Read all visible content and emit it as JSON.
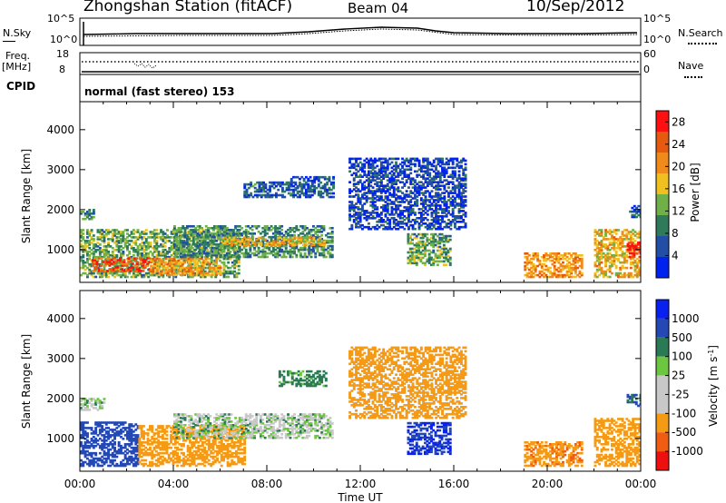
{
  "header": {
    "station": "Zhongshan Station (fitACF)",
    "beam": "Beam 04",
    "date": "10/Sep/2012"
  },
  "top_panel": {
    "left_label": "N.Sky",
    "right_label": "N.Search",
    "left_top_tick": "10^5",
    "left_bottom_tick": "10^0",
    "right_top_tick": "10^5",
    "right_bottom_tick": "10^0"
  },
  "freq_panel": {
    "left_label": "Freq.",
    "left_unit": "[MHz]",
    "right_label": "Nave",
    "left_top_tick": "18",
    "left_bottom_tick": "8",
    "right_top_tick": "60",
    "right_bottom_tick": "0"
  },
  "cpid": {
    "label": "CPID",
    "text": "normal (fast stereo) 153"
  },
  "colors": {
    "power": [
      "#0022ee",
      "#224fa5",
      "#2f7a5a",
      "#6fb048",
      "#f0c020",
      "#f08a1a",
      "#e65a10",
      "#ff1010"
    ],
    "velocity": [
      "#ee1010",
      "#f05d12",
      "#f59a15",
      "#c8c8c8",
      "#c8c8c8",
      "#6cc640",
      "#2a7a55",
      "#2448b4",
      "#0820f0"
    ],
    "gray_scatter": "#bdbdbd"
  },
  "chart_data": [
    {
      "type": "heatmap",
      "title": "",
      "xlabel": "",
      "ylabel": "Slant Range [km]",
      "x_ticks": [
        "00:00",
        "04:00",
        "08:00",
        "12:00",
        "16:00",
        "20:00",
        "00:00"
      ],
      "xlim_hours": [
        0,
        24
      ],
      "y_ticks": [
        1000,
        2000,
        3000,
        4000
      ],
      "ylim_km": [
        180,
        4700
      ],
      "colorbar": {
        "label": "Power [dB]",
        "ticks": [
          4,
          8,
          12,
          16,
          20,
          24,
          28
        ],
        "range": [
          0,
          30
        ]
      },
      "regions": [
        {
          "t": [
            0.0,
            6.8
          ],
          "r": [
            300,
            1500
          ],
          "v": 12
        },
        {
          "t": [
            0.5,
            3.0
          ],
          "r": [
            450,
            800
          ],
          "v": 25
        },
        {
          "t": [
            3.0,
            6.0
          ],
          "r": [
            350,
            800
          ],
          "v": 20
        },
        {
          "t": [
            0.0,
            0.6
          ],
          "r": [
            1750,
            2000
          ],
          "v": 10
        },
        {
          "t": [
            4.0,
            10.8
          ],
          "r": [
            800,
            1600
          ],
          "v": 10
        },
        {
          "t": [
            6.0,
            10.5
          ],
          "r": [
            1100,
            1300
          ],
          "v": 18
        },
        {
          "t": [
            7.0,
            9.0
          ],
          "r": [
            2300,
            2700
          ],
          "v": 7
        },
        {
          "t": [
            9.0,
            10.8
          ],
          "r": [
            2300,
            2800
          ],
          "v": 6
        },
        {
          "t": [
            11.5,
            16.5
          ],
          "r": [
            1500,
            3300
          ],
          "v": 4
        },
        {
          "t": [
            14.0,
            15.8
          ],
          "r": [
            600,
            1400
          ],
          "v": 12
        },
        {
          "t": [
            19.0,
            21.5
          ],
          "r": [
            300,
            900
          ],
          "v": 20
        },
        {
          "t": [
            22.0,
            24.0
          ],
          "r": [
            300,
            1500
          ],
          "v": 18
        },
        {
          "t": [
            23.4,
            24.0
          ],
          "r": [
            800,
            1200
          ],
          "v": 28
        },
        {
          "t": [
            23.5,
            24.0
          ],
          "r": [
            1800,
            2100
          ],
          "v": 6
        }
      ]
    },
    {
      "type": "heatmap",
      "title": "",
      "xlabel": "Time UT",
      "ylabel": "Slant Range [km]",
      "x_ticks": [
        "00:00",
        "04:00",
        "08:00",
        "12:00",
        "16:00",
        "20:00",
        "00:00"
      ],
      "xlim_hours": [
        0,
        24
      ],
      "y_ticks": [
        1000,
        2000,
        3000,
        4000
      ],
      "ylim_km": [
        180,
        4700
      ],
      "colorbar": {
        "label": "Velocity [m s^-1]",
        "ticks": [
          "1000",
          "500",
          "100",
          "25",
          "-25",
          "-100",
          "-500",
          "-1000"
        ]
      },
      "regions": [
        {
          "t": [
            0.0,
            2.5
          ],
          "r": [
            300,
            1400
          ],
          "v": 200
        },
        {
          "t": [
            2.5,
            7.0
          ],
          "r": [
            300,
            1300
          ],
          "v": -250
        },
        {
          "t": [
            0.0,
            1.0
          ],
          "r": [
            1700,
            2000
          ],
          "v": 0
        },
        {
          "t": [
            4.0,
            10.8
          ],
          "r": [
            1000,
            1600
          ],
          "v": 0
        },
        {
          "t": [
            8.5,
            10.5
          ],
          "r": [
            2300,
            2700
          ],
          "v": 50
        },
        {
          "t": [
            11.5,
            16.5
          ],
          "r": [
            1500,
            3300
          ],
          "v": -300
        },
        {
          "t": [
            14.0,
            15.8
          ],
          "r": [
            600,
            1400
          ],
          "v": 500
        },
        {
          "t": [
            19.0,
            21.5
          ],
          "r": [
            300,
            900
          ],
          "v": -400
        },
        {
          "t": [
            22.0,
            24.0
          ],
          "r": [
            300,
            1500
          ],
          "v": -200
        },
        {
          "t": [
            23.4,
            24.0
          ],
          "r": [
            1800,
            2100
          ],
          "v": 100
        }
      ]
    }
  ]
}
